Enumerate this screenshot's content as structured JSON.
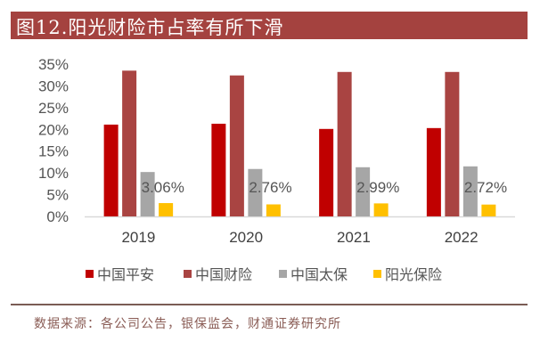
{
  "title": "图12.阳光财险市占率有所下滑",
  "source": "数据来源：各公司公告，银保监会，财通证券研究所",
  "colors": {
    "title_bg": "#a4423f",
    "series": [
      "#c00000",
      "#a94442",
      "#a6a6a6",
      "#ffc000"
    ]
  },
  "chart_data": {
    "type": "bar",
    "title": "阳光财险市占率有所下滑",
    "xlabel": "",
    "ylabel": "",
    "categories": [
      "2019",
      "2020",
      "2021",
      "2022"
    ],
    "ylim": [
      0,
      35
    ],
    "yticks": [
      0,
      5,
      10,
      15,
      20,
      25,
      30,
      35
    ],
    "ytick_labels": [
      "0%",
      "5%",
      "10%",
      "15%",
      "20%",
      "25%",
      "30%",
      "35%"
    ],
    "grid": false,
    "legend_position": "bottom",
    "series": [
      {
        "name": "中国平安",
        "values": [
          21.1,
          21.3,
          20.1,
          20.3
        ]
      },
      {
        "name": "中国财险",
        "values": [
          33.5,
          32.4,
          33.2,
          33.2
        ]
      },
      {
        "name": "中国太保",
        "values": [
          10.2,
          10.9,
          11.3,
          11.5
        ]
      },
      {
        "name": "阳光保险",
        "values": [
          3.06,
          2.76,
          2.99,
          2.72
        ]
      }
    ],
    "data_labels": {
      "series": "阳光保险",
      "labels": [
        "3.06%",
        "2.76%",
        "2.99%",
        "2.72%"
      ]
    }
  }
}
